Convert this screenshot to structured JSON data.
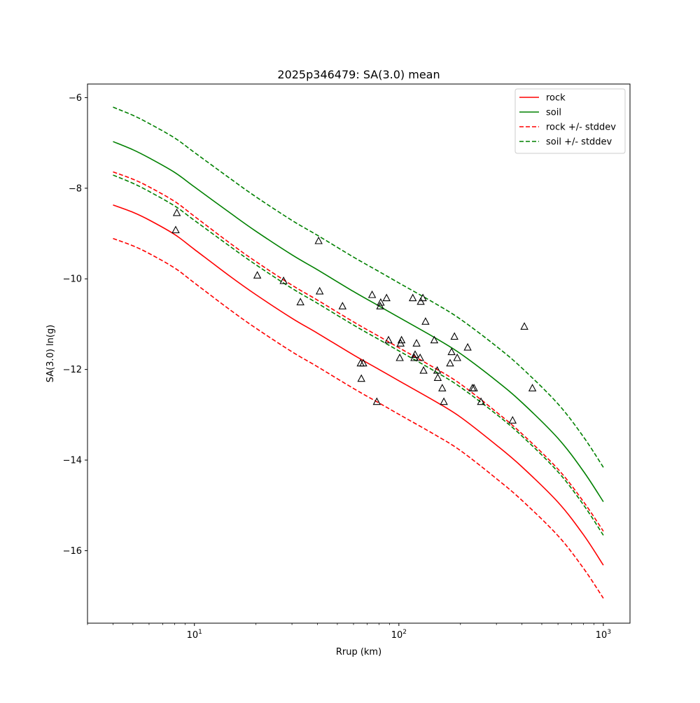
{
  "chart_data": {
    "type": "line",
    "title": "2025p346479: SA(3.0) mean",
    "xlabel": "Rrup (km)",
    "ylabel": "SA(3.0) ln(g)",
    "x_scale": "log",
    "xlim": [
      3.0,
      1350
    ],
    "ylim": [
      -17.6,
      -5.7
    ],
    "x_ticks": [
      {
        "value": 10,
        "base": "10",
        "exp": "1"
      },
      {
        "value": 100,
        "base": "10",
        "exp": "2"
      },
      {
        "value": 1000,
        "base": "10",
        "exp": "3"
      }
    ],
    "y_ticks": [
      -6,
      -8,
      -10,
      -12,
      -14,
      -16
    ],
    "y_tick_labels": [
      "−6",
      "−8",
      "−10",
      "−12",
      "−14",
      "−16"
    ],
    "grid": false,
    "legend": {
      "placement": "top-right"
    },
    "series": [
      {
        "name": "rock",
        "color": "#ff0000",
        "dash": "solid",
        "x": [
          4,
          5,
          6,
          8,
          10,
          15,
          20,
          30,
          40,
          60,
          80,
          100,
          150,
          200,
          300,
          400,
          600,
          800,
          1000
        ],
        "y": [
          -8.37,
          -8.53,
          -8.7,
          -9.02,
          -9.35,
          -9.95,
          -10.35,
          -10.87,
          -11.2,
          -11.68,
          -12.0,
          -12.25,
          -12.7,
          -13.05,
          -13.67,
          -14.15,
          -14.93,
          -15.65,
          -16.32
        ]
      },
      {
        "name": "soil",
        "color": "#008000",
        "dash": "solid",
        "x": [
          4,
          5,
          6,
          8,
          10,
          15,
          20,
          30,
          40,
          60,
          80,
          100,
          150,
          200,
          300,
          400,
          600,
          800,
          1000
        ],
        "y": [
          -6.97,
          -7.15,
          -7.33,
          -7.65,
          -7.97,
          -8.55,
          -8.95,
          -9.47,
          -9.8,
          -10.28,
          -10.6,
          -10.85,
          -11.3,
          -11.65,
          -12.25,
          -12.73,
          -13.52,
          -14.25,
          -14.92
        ]
      },
      {
        "name": "rock +/- stddev",
        "color": "#ff0000",
        "dash": "dashed",
        "x": [
          4,
          5,
          6,
          8,
          10,
          15,
          20,
          30,
          40,
          60,
          80,
          100,
          150,
          200,
          300,
          400,
          600,
          800,
          1000
        ],
        "y": [
          -7.64,
          -7.8,
          -7.97,
          -8.29,
          -8.62,
          -9.22,
          -9.62,
          -10.14,
          -10.47,
          -10.95,
          -11.27,
          -11.52,
          -11.97,
          -12.32,
          -12.94,
          -13.42,
          -14.2,
          -14.92,
          -15.57
        ]
      },
      {
        "name": "",
        "color": "#ff0000",
        "dash": "dashed",
        "x": [
          4,
          5,
          6,
          8,
          10,
          15,
          20,
          30,
          40,
          60,
          80,
          100,
          150,
          200,
          300,
          400,
          600,
          800,
          1000
        ],
        "y": [
          -9.11,
          -9.27,
          -9.44,
          -9.76,
          -10.09,
          -10.69,
          -11.09,
          -11.61,
          -11.94,
          -12.42,
          -12.74,
          -12.99,
          -13.44,
          -13.79,
          -14.41,
          -14.89,
          -15.67,
          -16.39,
          -17.05
        ]
      },
      {
        "name": "soil +/- stddev",
        "color": "#008000",
        "dash": "dashed",
        "x": [
          4,
          5,
          6,
          8,
          10,
          15,
          20,
          30,
          40,
          60,
          80,
          100,
          150,
          200,
          300,
          400,
          600,
          800,
          1000
        ],
        "y": [
          -6.21,
          -6.39,
          -6.57,
          -6.89,
          -7.21,
          -7.79,
          -8.19,
          -8.71,
          -9.04,
          -9.52,
          -9.84,
          -10.09,
          -10.54,
          -10.89,
          -11.49,
          -11.97,
          -12.76,
          -13.49,
          -14.16
        ]
      },
      {
        "name": "",
        "color": "#008000",
        "dash": "dashed",
        "x": [
          4,
          5,
          6,
          8,
          10,
          15,
          20,
          30,
          40,
          60,
          80,
          100,
          150,
          200,
          300,
          400,
          600,
          800,
          1000
        ],
        "y": [
          -7.71,
          -7.89,
          -8.07,
          -8.39,
          -8.71,
          -9.29,
          -9.69,
          -10.21,
          -10.54,
          -11.02,
          -11.34,
          -11.59,
          -12.04,
          -12.39,
          -12.99,
          -13.47,
          -14.26,
          -14.99,
          -15.66
        ]
      }
    ],
    "observations": {
      "marker": "triangle",
      "color": "#000000",
      "x": [
        8.2,
        8.1,
        20.3,
        27.3,
        33,
        40.5,
        41,
        53,
        65,
        65.5,
        67,
        74,
        78,
        81,
        81.5,
        87,
        89,
        101,
        102,
        103,
        117,
        119,
        120,
        122,
        127,
        128,
        131,
        132,
        135,
        149,
        154,
        155,
        163,
        166,
        178,
        181,
        187,
        193,
        217,
        229,
        233,
        252,
        360,
        411,
        450
      ],
      "y": [
        -8.55,
        -8.93,
        -9.93,
        -10.05,
        -10.52,
        -9.17,
        -10.28,
        -10.61,
        -11.87,
        -12.21,
        -11.87,
        -10.36,
        -12.72,
        -10.61,
        -10.53,
        -10.43,
        -11.36,
        -11.75,
        -11.43,
        -11.36,
        -10.43,
        -11.75,
        -11.68,
        -11.43,
        -11.75,
        -10.51,
        -10.43,
        -12.03,
        -10.95,
        -11.36,
        -12.03,
        -12.19,
        -12.42,
        -12.72,
        -11.87,
        -11.62,
        -11.28,
        -11.75,
        -11.52,
        -12.42,
        -12.42,
        -12.72,
        -13.13,
        -11.06,
        -12.42
      ]
    }
  }
}
